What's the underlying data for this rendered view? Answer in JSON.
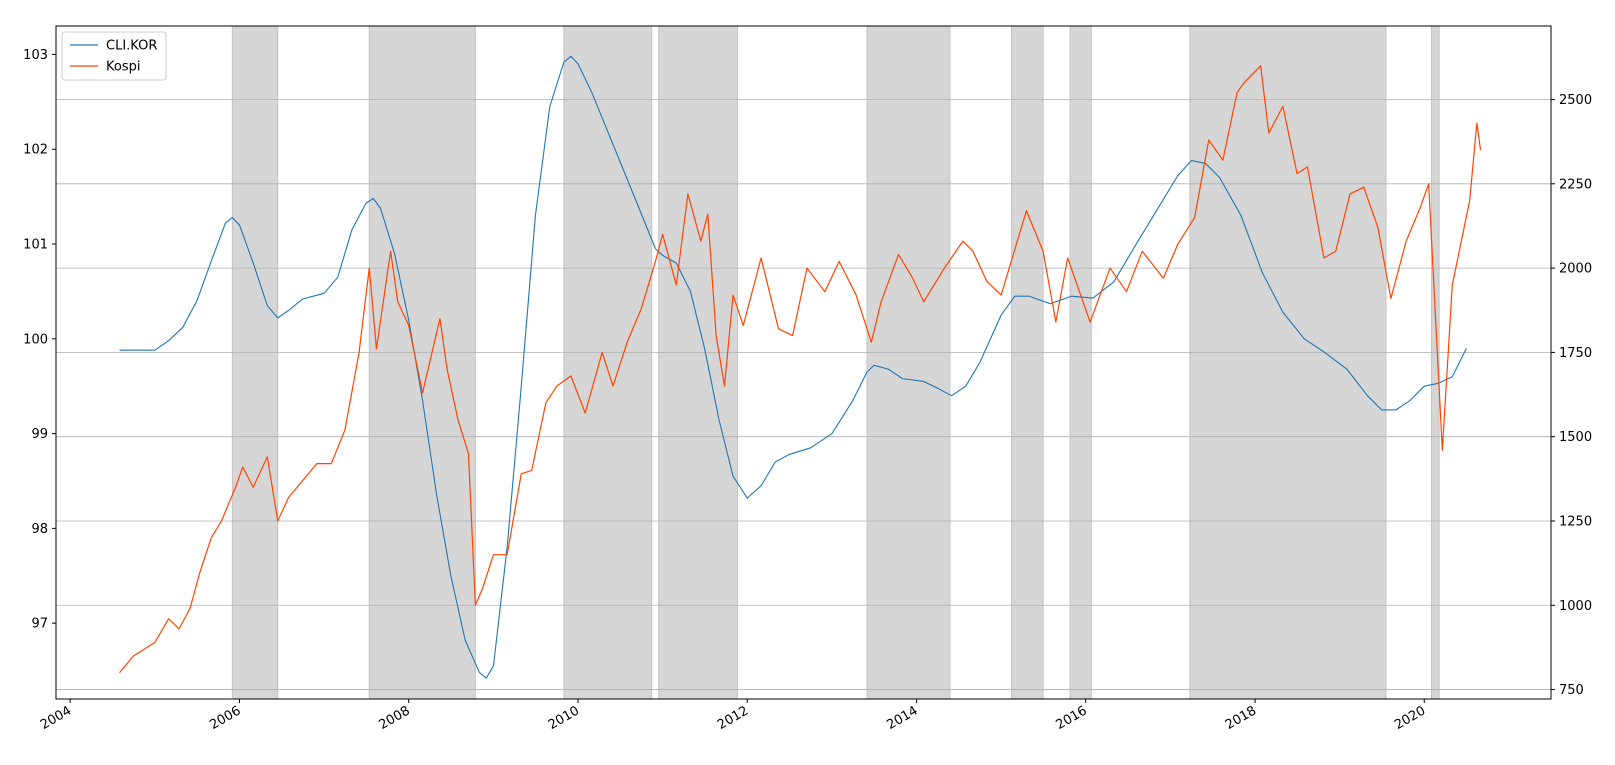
{
  "chart_data": {
    "type": "line",
    "title": "",
    "xlabel": "",
    "ylabel": "",
    "y2label": "",
    "grid": "horizontal lines at right-axis ticks",
    "legend_position": "top-left",
    "x_axis": {
      "type": "date",
      "range": [
        "2003-11-01",
        "2021-07-01"
      ],
      "ticks": [
        "2004",
        "2006",
        "2008",
        "2010",
        "2012",
        "2014",
        "2016",
        "2018",
        "2020"
      ]
    },
    "left_axis": {
      "range": [
        96.2,
        103.3
      ],
      "ticks": [
        "97",
        "98",
        "99",
        "100",
        "101",
        "102",
        "103"
      ]
    },
    "right_axis": {
      "range": [
        722,
        2718
      ],
      "ticks": [
        "750",
        "1000",
        "1250",
        "1500",
        "1750",
        "2000",
        "2250",
        "2500"
      ]
    },
    "shaded_periods": [
      [
        "2005-12-01",
        "2006-06-15"
      ],
      [
        "2007-07-15",
        "2008-10-15"
      ],
      [
        "2009-11-01",
        "2010-11-15"
      ],
      [
        "2010-12-15",
        "2011-11-20"
      ],
      [
        "2013-06-01",
        "2014-05-25"
      ],
      [
        "2015-02-15",
        "2015-07-01"
      ],
      [
        "2015-10-25",
        "2016-01-25"
      ],
      [
        "2017-03-25",
        "2019-07-20"
      ],
      [
        "2020-02-01",
        "2020-03-05"
      ]
    ],
    "shade_color": "#d6d6d6",
    "series": [
      {
        "name": "CLI.KOR",
        "axis": "left",
        "color": "#1f77b4",
        "points": [
          [
            "2004-08-01",
            99.88
          ],
          [
            "2005-01-01",
            99.88
          ],
          [
            "2005-03-01",
            99.98
          ],
          [
            "2005-05-01",
            100.12
          ],
          [
            "2005-07-01",
            100.4
          ],
          [
            "2005-09-01",
            100.82
          ],
          [
            "2005-11-01",
            101.22
          ],
          [
            "2005-12-01",
            101.28
          ],
          [
            "2006-01-01",
            101.2
          ],
          [
            "2006-03-01",
            100.8
          ],
          [
            "2006-05-01",
            100.35
          ],
          [
            "2006-06-15",
            100.22
          ],
          [
            "2006-08-01",
            100.3
          ],
          [
            "2006-10-01",
            100.42
          ],
          [
            "2007-01-01",
            100.48
          ],
          [
            "2007-03-01",
            100.65
          ],
          [
            "2007-05-01",
            101.15
          ],
          [
            "2007-07-01",
            101.43
          ],
          [
            "2007-08-01",
            101.48
          ],
          [
            "2007-09-01",
            101.38
          ],
          [
            "2007-11-01",
            100.9
          ],
          [
            "2008-01-01",
            100.2
          ],
          [
            "2008-03-01",
            99.35
          ],
          [
            "2008-05-01",
            98.35
          ],
          [
            "2008-07-01",
            97.5
          ],
          [
            "2008-09-01",
            96.82
          ],
          [
            "2008-11-01",
            96.48
          ],
          [
            "2008-12-01",
            96.42
          ],
          [
            "2009-01-01",
            96.55
          ],
          [
            "2009-03-01",
            97.8
          ],
          [
            "2009-05-01",
            99.5
          ],
          [
            "2009-07-01",
            101.3
          ],
          [
            "2009-09-01",
            102.45
          ],
          [
            "2009-11-01",
            102.92
          ],
          [
            "2009-12-01",
            102.98
          ],
          [
            "2010-01-01",
            102.9
          ],
          [
            "2010-03-01",
            102.6
          ],
          [
            "2010-06-01",
            102.05
          ],
          [
            "2010-09-01",
            101.5
          ],
          [
            "2010-12-01",
            100.95
          ],
          [
            "2011-01-01",
            100.88
          ],
          [
            "2011-03-01",
            100.8
          ],
          [
            "2011-05-01",
            100.5
          ],
          [
            "2011-07-01",
            99.9
          ],
          [
            "2011-09-01",
            99.15
          ],
          [
            "2011-11-01",
            98.55
          ],
          [
            "2012-01-01",
            98.32
          ],
          [
            "2012-03-01",
            98.45
          ],
          [
            "2012-05-01",
            98.7
          ],
          [
            "2012-07-01",
            98.78
          ],
          [
            "2012-10-01",
            98.85
          ],
          [
            "2013-01-01",
            99.0
          ],
          [
            "2013-04-01",
            99.35
          ],
          [
            "2013-06-01",
            99.65
          ],
          [
            "2013-07-01",
            99.72
          ],
          [
            "2013-09-01",
            99.68
          ],
          [
            "2013-11-01",
            99.58
          ],
          [
            "2014-02-01",
            99.55
          ],
          [
            "2014-04-01",
            99.48
          ],
          [
            "2014-06-01",
            99.4
          ],
          [
            "2014-08-01",
            99.5
          ],
          [
            "2014-10-01",
            99.75
          ],
          [
            "2015-01-01",
            100.25
          ],
          [
            "2015-03-01",
            100.45
          ],
          [
            "2015-05-01",
            100.45
          ],
          [
            "2015-08-01",
            100.37
          ],
          [
            "2015-11-01",
            100.45
          ],
          [
            "2016-02-01",
            100.43
          ],
          [
            "2016-05-01",
            100.6
          ],
          [
            "2016-08-01",
            100.98
          ],
          [
            "2016-11-01",
            101.35
          ],
          [
            "2017-02-01",
            101.72
          ],
          [
            "2017-04-01",
            101.88
          ],
          [
            "2017-06-01",
            101.85
          ],
          [
            "2017-08-01",
            101.7
          ],
          [
            "2017-11-01",
            101.3
          ],
          [
            "2018-02-01",
            100.7
          ],
          [
            "2018-05-01",
            100.28
          ],
          [
            "2018-08-01",
            100.0
          ],
          [
            "2018-11-01",
            99.85
          ],
          [
            "2019-02-01",
            99.68
          ],
          [
            "2019-05-01",
            99.4
          ],
          [
            "2019-07-01",
            99.25
          ],
          [
            "2019-09-01",
            99.25
          ],
          [
            "2019-11-01",
            99.35
          ],
          [
            "2020-01-01",
            99.5
          ],
          [
            "2020-03-01",
            99.53
          ],
          [
            "2020-05-01",
            99.6
          ],
          [
            "2020-07-01",
            99.9
          ]
        ]
      },
      {
        "name": "Kospi",
        "axis": "right",
        "color": "#ff4500",
        "points": [
          [
            "2004-08-01",
            800
          ],
          [
            "2004-10-01",
            850
          ],
          [
            "2005-01-01",
            890
          ],
          [
            "2005-03-01",
            960
          ],
          [
            "2005-04-15",
            930
          ],
          [
            "2005-06-01",
            990
          ],
          [
            "2005-07-15",
            1100
          ],
          [
            "2005-09-01",
            1200
          ],
          [
            "2005-10-15",
            1250
          ],
          [
            "2005-12-15",
            1350
          ],
          [
            "2006-01-15",
            1410
          ],
          [
            "2006-03-01",
            1350
          ],
          [
            "2006-05-01",
            1440
          ],
          [
            "2006-06-15",
            1250
          ],
          [
            "2006-08-01",
            1320
          ],
          [
            "2006-10-01",
            1370
          ],
          [
            "2006-12-01",
            1420
          ],
          [
            "2007-02-01",
            1420
          ],
          [
            "2007-04-01",
            1520
          ],
          [
            "2007-06-01",
            1750
          ],
          [
            "2007-07-15",
            2000
          ],
          [
            "2007-08-15",
            1760
          ],
          [
            "2007-10-15",
            2050
          ],
          [
            "2007-11-15",
            1900
          ],
          [
            "2008-01-01",
            1830
          ],
          [
            "2008-03-01",
            1630
          ],
          [
            "2008-05-15",
            1850
          ],
          [
            "2008-06-15",
            1700
          ],
          [
            "2008-08-01",
            1550
          ],
          [
            "2008-09-15",
            1450
          ],
          [
            "2008-10-15",
            1000
          ],
          [
            "2008-11-15",
            1050
          ],
          [
            "2009-01-01",
            1150
          ],
          [
            "2009-03-01",
            1150
          ],
          [
            "2009-05-01",
            1390
          ],
          [
            "2009-06-15",
            1400
          ],
          [
            "2009-08-15",
            1600
          ],
          [
            "2009-10-01",
            1650
          ],
          [
            "2009-12-01",
            1680
          ],
          [
            "2010-02-01",
            1570
          ],
          [
            "2010-04-15",
            1750
          ],
          [
            "2010-06-01",
            1650
          ],
          [
            "2010-08-01",
            1780
          ],
          [
            "2010-10-01",
            1880
          ],
          [
            "2010-12-01",
            2020
          ],
          [
            "2011-01-01",
            2100
          ],
          [
            "2011-03-01",
            1950
          ],
          [
            "2011-04-20",
            2220
          ],
          [
            "2011-06-15",
            2080
          ],
          [
            "2011-07-15",
            2160
          ],
          [
            "2011-08-20",
            1800
          ],
          [
            "2011-09-25",
            1650
          ],
          [
            "2011-11-01",
            1920
          ],
          [
            "2011-12-15",
            1830
          ],
          [
            "2012-03-01",
            2030
          ],
          [
            "2012-05-15",
            1820
          ],
          [
            "2012-07-15",
            1800
          ],
          [
            "2012-09-15",
            2000
          ],
          [
            "2012-12-01",
            1930
          ],
          [
            "2013-02-01",
            2020
          ],
          [
            "2013-04-15",
            1920
          ],
          [
            "2013-06-20",
            1780
          ],
          [
            "2013-08-01",
            1900
          ],
          [
            "2013-10-15",
            2040
          ],
          [
            "2013-12-15",
            1970
          ],
          [
            "2014-02-01",
            1900
          ],
          [
            "2014-05-01",
            2000
          ],
          [
            "2014-07-20",
            2080
          ],
          [
            "2014-09-01",
            2050
          ],
          [
            "2014-11-01",
            1960
          ],
          [
            "2015-01-01",
            1920
          ],
          [
            "2015-04-20",
            2170
          ],
          [
            "2015-07-01",
            2050
          ],
          [
            "2015-08-25",
            1840
          ],
          [
            "2015-10-15",
            2030
          ],
          [
            "2016-01-20",
            1840
          ],
          [
            "2016-04-15",
            2000
          ],
          [
            "2016-06-25",
            1930
          ],
          [
            "2016-09-01",
            2050
          ],
          [
            "2016-12-01",
            1970
          ],
          [
            "2017-02-01",
            2070
          ],
          [
            "2017-04-15",
            2150
          ],
          [
            "2017-06-15",
            2380
          ],
          [
            "2017-08-15",
            2320
          ],
          [
            "2017-10-15",
            2520
          ],
          [
            "2017-11-15",
            2550
          ],
          [
            "2018-01-25",
            2600
          ],
          [
            "2018-03-01",
            2400
          ],
          [
            "2018-05-01",
            2480
          ],
          [
            "2018-07-01",
            2280
          ],
          [
            "2018-08-15",
            2300
          ],
          [
            "2018-10-25",
            2030
          ],
          [
            "2018-12-15",
            2050
          ],
          [
            "2019-02-15",
            2220
          ],
          [
            "2019-04-15",
            2240
          ],
          [
            "2019-06-15",
            2120
          ],
          [
            "2019-08-10",
            1910
          ],
          [
            "2019-10-15",
            2080
          ],
          [
            "2019-12-15",
            2180
          ],
          [
            "2020-01-20",
            2250
          ],
          [
            "2020-03-19",
            1460
          ],
          [
            "2020-05-01",
            1950
          ],
          [
            "2020-07-15",
            2200
          ],
          [
            "2020-08-15",
            2430
          ],
          [
            "2020-08-31",
            2350
          ]
        ]
      }
    ]
  }
}
